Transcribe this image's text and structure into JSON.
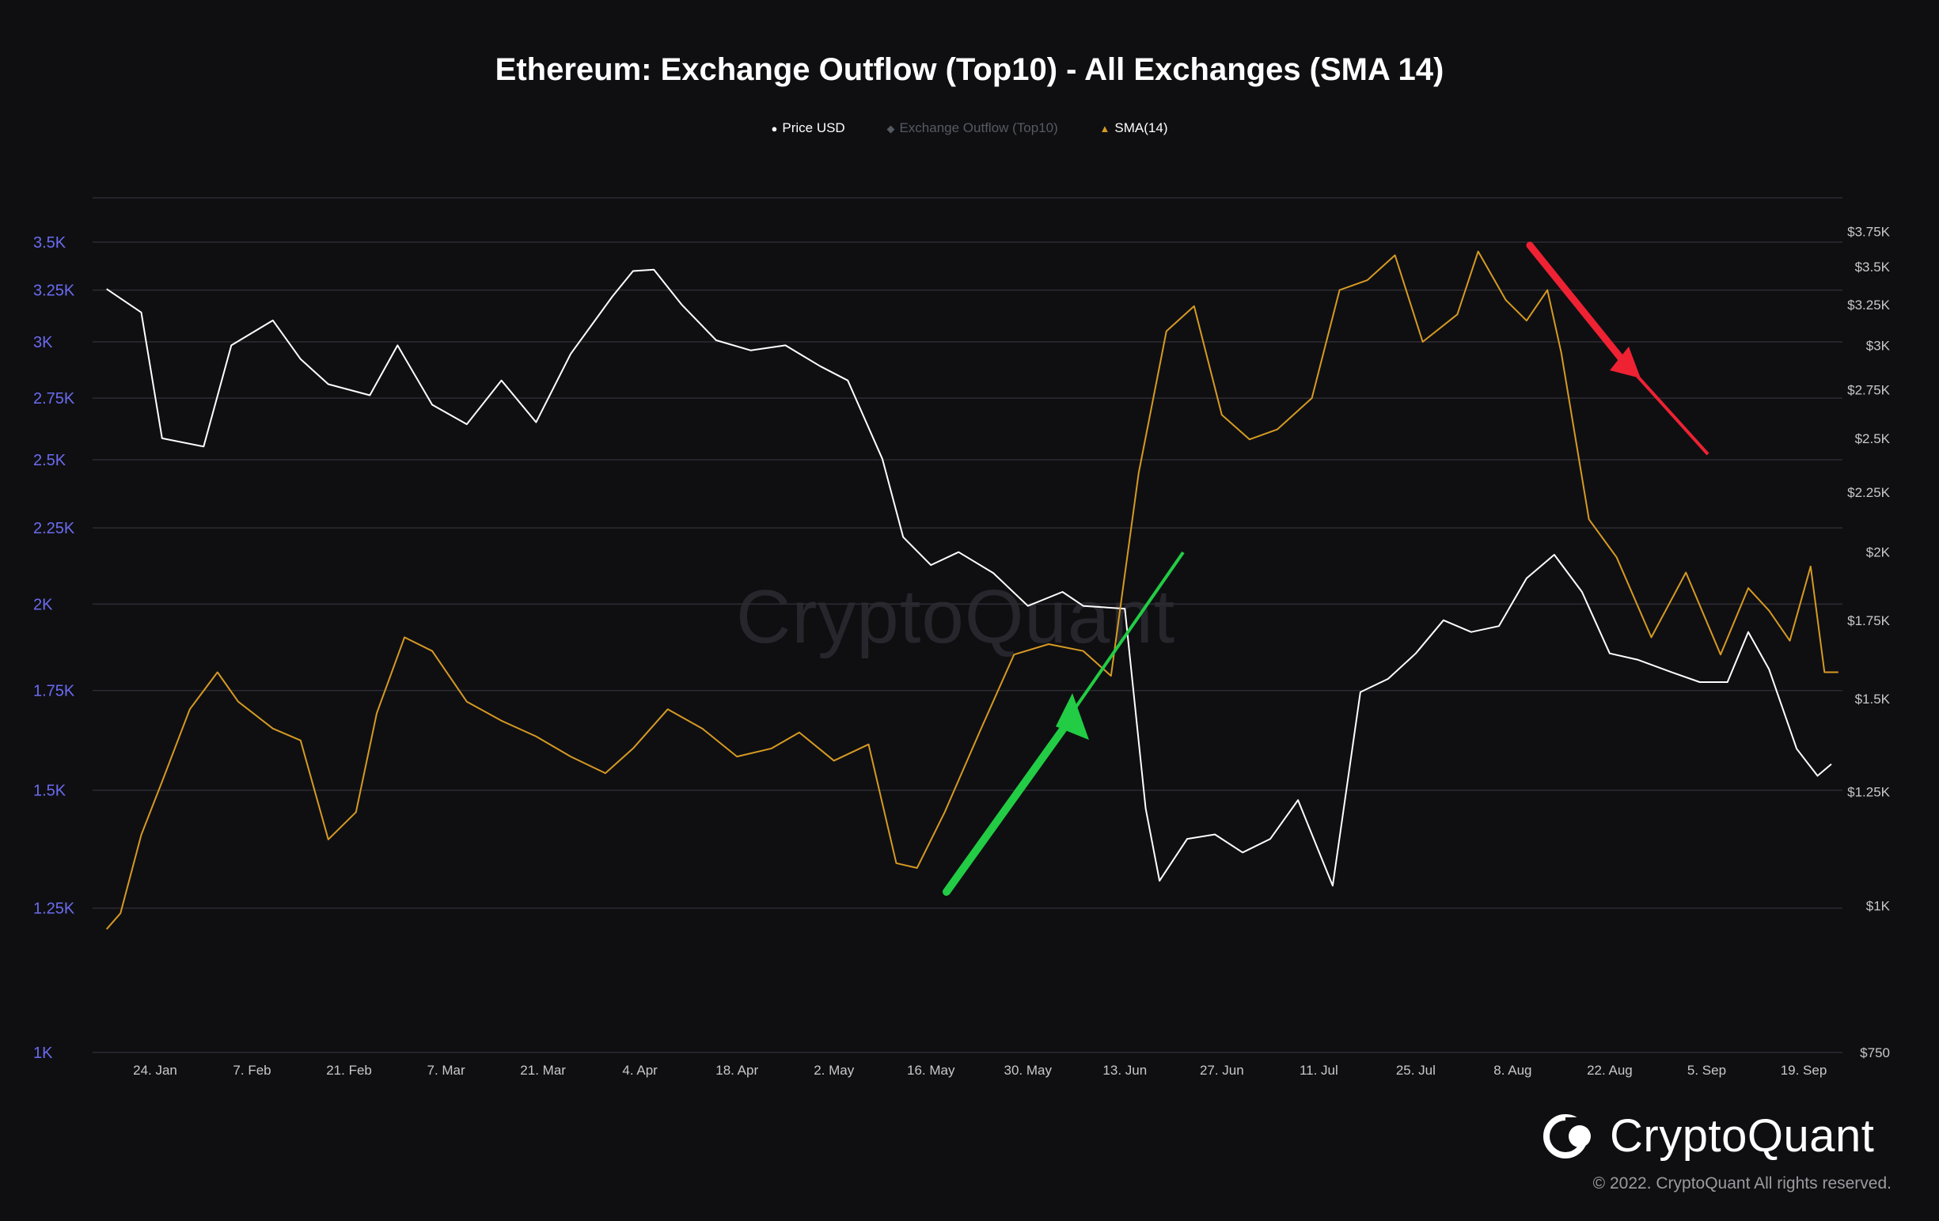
{
  "chart_data": {
    "type": "line",
    "title": "Ethereum: Exchange Outflow (Top10) - All Exchanges (SMA 14)",
    "legend": [
      {
        "name": "Price USD",
        "symbol": "●",
        "color": "#ffffff",
        "muted": false
      },
      {
        "name": "Exchange Outflow (Top10)",
        "symbol": "◆",
        "color": "#555a62",
        "muted": true
      },
      {
        "name": "SMA(14)",
        "symbol": "▲",
        "color": "#d69a22",
        "muted": false
      }
    ],
    "x_tick_labels": [
      "24. Jan",
      "7. Feb",
      "21. Feb",
      "7. Mar",
      "21. Mar",
      "4. Apr",
      "18. Apr",
      "2. May",
      "16. May",
      "30. May",
      "13. Jun",
      "27. Jun",
      "11. Jul",
      "25. Jul",
      "8. Aug",
      "22. Aug",
      "5. Sep",
      "19. Sep"
    ],
    "y_left": {
      "scale": "log",
      "range": [
        1000,
        3750
      ],
      "ticks": [
        {
          "v": 1000,
          "label": "1K"
        },
        {
          "v": 1250,
          "label": "1.25K"
        },
        {
          "v": 1500,
          "label": "1.5K"
        },
        {
          "v": 1750,
          "label": "1.75K"
        },
        {
          "v": 2000,
          "label": "2K"
        },
        {
          "v": 2250,
          "label": "2.25K"
        },
        {
          "v": 2500,
          "label": "2.5K"
        },
        {
          "v": 2750,
          "label": "2.75K"
        },
        {
          "v": 3000,
          "label": "3K"
        },
        {
          "v": 3250,
          "label": "3.25K"
        },
        {
          "v": 3500,
          "label": "3.5K"
        }
      ]
    },
    "y_right": {
      "scale": "log",
      "range": [
        750,
        3750
      ],
      "ticks": [
        {
          "v": 750,
          "label": "$750"
        },
        {
          "v": 1000,
          "label": "$1K"
        },
        {
          "v": 1250,
          "label": "$1.25K"
        },
        {
          "v": 1500,
          "label": "$1.5K"
        },
        {
          "v": 1750,
          "label": "$1.75K"
        },
        {
          "v": 2000,
          "label": "$2K"
        },
        {
          "v": 2250,
          "label": "$2.25K"
        },
        {
          "v": 2500,
          "label": "$2.5K"
        },
        {
          "v": 2750,
          "label": "$2.75K"
        },
        {
          "v": 3000,
          "label": "$3K"
        },
        {
          "v": 3250,
          "label": "$3.25K"
        },
        {
          "v": 3500,
          "label": "$3.5K"
        },
        {
          "v": 3750,
          "label": "$3.75K"
        }
      ]
    },
    "grid": true,
    "series": [
      {
        "name": "Price USD",
        "axis": "right",
        "color": "#ffffff",
        "x": [
          "17. Jan",
          "22. Jan",
          "25. Jan",
          "31. Jan",
          "4. Feb",
          "10. Feb",
          "14. Feb",
          "18. Feb",
          "24. Feb",
          "28. Feb",
          "5. Mar",
          "10. Mar",
          "15. Mar",
          "20. Mar",
          "25. Mar",
          "31. Mar",
          "3. Apr",
          "6. Apr",
          "10. Apr",
          "15. Apr",
          "20. Apr",
          "25. Apr",
          "30. Apr",
          "4. May",
          "9. May",
          "12. May",
          "16. May",
          "20. May",
          "25. May",
          "30. May",
          "4. Jun",
          "7. Jun",
          "13. Jun",
          "16. Jun",
          "18. Jun",
          "22. Jun",
          "26. Jun",
          "30. Jun",
          "4. Jul",
          "8. Jul",
          "13. Jul",
          "17. Jul",
          "21. Jul",
          "25. Jul",
          "29. Jul",
          "2. Aug",
          "6. Aug",
          "10. Aug",
          "14. Aug",
          "18. Aug",
          "22. Aug",
          "26. Aug",
          "31. Aug",
          "4. Sep",
          "8. Sep",
          "11. Sep",
          "14. Sep",
          "18. Sep",
          "21. Sep",
          "23. Sep"
        ],
        "values": [
          3350,
          3200,
          2500,
          2460,
          3000,
          3150,
          2920,
          2780,
          2720,
          3000,
          2670,
          2570,
          2800,
          2580,
          2950,
          3300,
          3470,
          3480,
          3250,
          3030,
          2970,
          3000,
          2880,
          2800,
          2400,
          2060,
          1950,
          2000,
          1920,
          1800,
          1850,
          1800,
          1790,
          1210,
          1050,
          1140,
          1150,
          1110,
          1140,
          1230,
          1040,
          1520,
          1560,
          1640,
          1750,
          1710,
          1730,
          1900,
          1990,
          1850,
          1640,
          1620,
          1580,
          1550,
          1550,
          1710,
          1590,
          1360,
          1290,
          1320
        ]
      },
      {
        "name": "SMA(14)",
        "axis": "left",
        "color": "#d69a22",
        "x": [
          "17. Jan",
          "19. Jan",
          "22. Jan",
          "25. Jan",
          "29. Jan",
          "2. Feb",
          "5. Feb",
          "10. Feb",
          "14. Feb",
          "18. Feb",
          "22. Feb",
          "25. Feb",
          "1. Mar",
          "5. Mar",
          "10. Mar",
          "15. Mar",
          "20. Mar",
          "25. Mar",
          "30. Mar",
          "3. Apr",
          "8. Apr",
          "13. Apr",
          "18. Apr",
          "23. Apr",
          "27. Apr",
          "2. May",
          "7. May",
          "11. May",
          "14. May",
          "18. May",
          "23. May",
          "28. May",
          "2. Jun",
          "7. Jun",
          "11. Jun",
          "15. Jun",
          "19. Jun",
          "23. Jun",
          "27. Jun",
          "1. Jul",
          "5. Jul",
          "10. Jul",
          "14. Jul",
          "18. Jul",
          "22. Jul",
          "26. Jul",
          "31. Jul",
          "3. Aug",
          "7. Aug",
          "10. Aug",
          "13. Aug",
          "15. Aug",
          "19. Aug",
          "23. Aug",
          "28. Aug",
          "2. Sep",
          "7. Sep",
          "11. Sep",
          "14. Sep",
          "17. Sep",
          "20. Sep",
          "22. Sep",
          "24. Sep"
        ],
        "values": [
          1210,
          1240,
          1400,
          1520,
          1700,
          1800,
          1720,
          1650,
          1620,
          1390,
          1450,
          1690,
          1900,
          1860,
          1720,
          1670,
          1630,
          1580,
          1540,
          1600,
          1700,
          1650,
          1580,
          1600,
          1640,
          1570,
          1610,
          1340,
          1330,
          1450,
          1640,
          1850,
          1880,
          1860,
          1790,
          2450,
          3050,
          3170,
          2680,
          2580,
          2620,
          2750,
          3250,
          3300,
          3430,
          3000,
          3130,
          3450,
          3200,
          3100,
          3250,
          2950,
          2280,
          2150,
          1900,
          2100,
          1850,
          2050,
          1980,
          1890,
          2120,
          1800,
          1800
        ]
      }
    ],
    "annotations": [
      {
        "shape": "arrow",
        "direction": "up",
        "color": "#22cc44"
      },
      {
        "shape": "arrow",
        "direction": "down",
        "color": "#ee2233"
      }
    ],
    "watermark": "CryptoQuant"
  },
  "brand": {
    "name": "CryptoQuant",
    "copyright": "© 2022. CryptoQuant All rights reserved."
  },
  "colors": {
    "background": "#0f0f12",
    "grid": "#2c2c33",
    "left_axis": "#6b6bf0"
  }
}
